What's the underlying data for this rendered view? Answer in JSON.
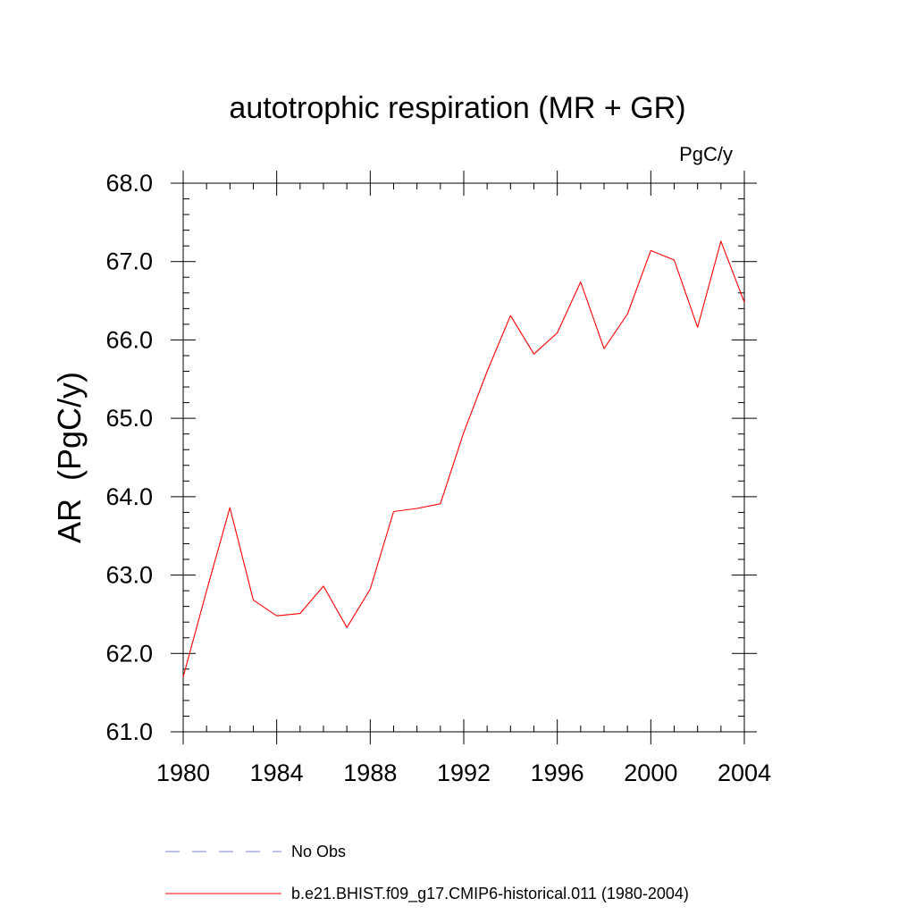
{
  "chart_data": {
    "type": "line",
    "title": "autotrophic respiration (MR + GR)",
    "units_label": "PgC/y",
    "ylabel": "AR  (PgC/y)",
    "xlabel": "",
    "xlim": [
      1980,
      2004
    ],
    "ylim": [
      61.0,
      68.0
    ],
    "x_ticks": [
      "1980",
      "1984",
      "1988",
      "1992",
      "1996",
      "2000",
      "2004"
    ],
    "y_ticks": [
      "61.0",
      "62.0",
      "63.0",
      "64.0",
      "65.0",
      "66.0",
      "67.0",
      "68.0"
    ],
    "x": [
      1980,
      1981,
      1982,
      1983,
      1984,
      1985,
      1986,
      1987,
      1988,
      1989,
      1990,
      1991,
      1992,
      1993,
      1994,
      1995,
      1996,
      1997,
      1998,
      1999,
      2000,
      2001,
      2002,
      2003,
      2004
    ],
    "series": [
      {
        "name": "b.e21.BHIST.f09_g17.CMIP6-historical.011 (1980-2004)",
        "color": "#ff0000",
        "values": [
          61.7,
          62.8,
          63.86,
          62.68,
          62.48,
          62.51,
          62.86,
          62.33,
          62.82,
          63.81,
          63.85,
          63.91,
          64.82,
          65.6,
          66.31,
          65.82,
          66.09,
          66.74,
          65.89,
          66.33,
          67.14,
          67.02,
          66.16,
          67.26,
          66.48
        ]
      }
    ],
    "legend": [
      {
        "label": "No Obs",
        "color": "#7b7bd6",
        "style": "dashed"
      },
      {
        "label": "b.e21.BHIST.f09_g17.CMIP6-historical.011 (1980-2004)",
        "color": "#ff0000",
        "style": "solid"
      }
    ],
    "legend_placement": "bottom",
    "grid": false
  }
}
